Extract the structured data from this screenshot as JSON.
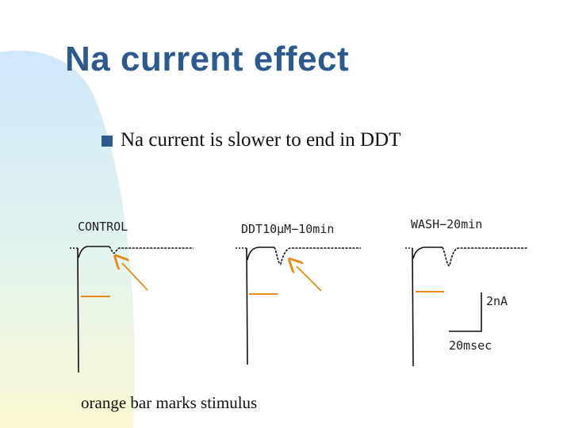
{
  "slide": {
    "title": "Na current effect",
    "bullet": "Na current is slower to end in DDT",
    "caption": "orange bar marks stimulus"
  },
  "panels": [
    {
      "label": "CONTROL"
    },
    {
      "label": "DDT10µM−10min"
    },
    {
      "label": "WASH−20min"
    }
  ],
  "scale_bar": {
    "current": "2nA",
    "time": "20msec"
  },
  "colors": {
    "title": "#2d5a8c",
    "stimulus_bar": "#e8891a",
    "arrow": "#e8891a",
    "trace": "#111111"
  },
  "icons": {
    "bullet": "square-bullet-icon"
  }
}
